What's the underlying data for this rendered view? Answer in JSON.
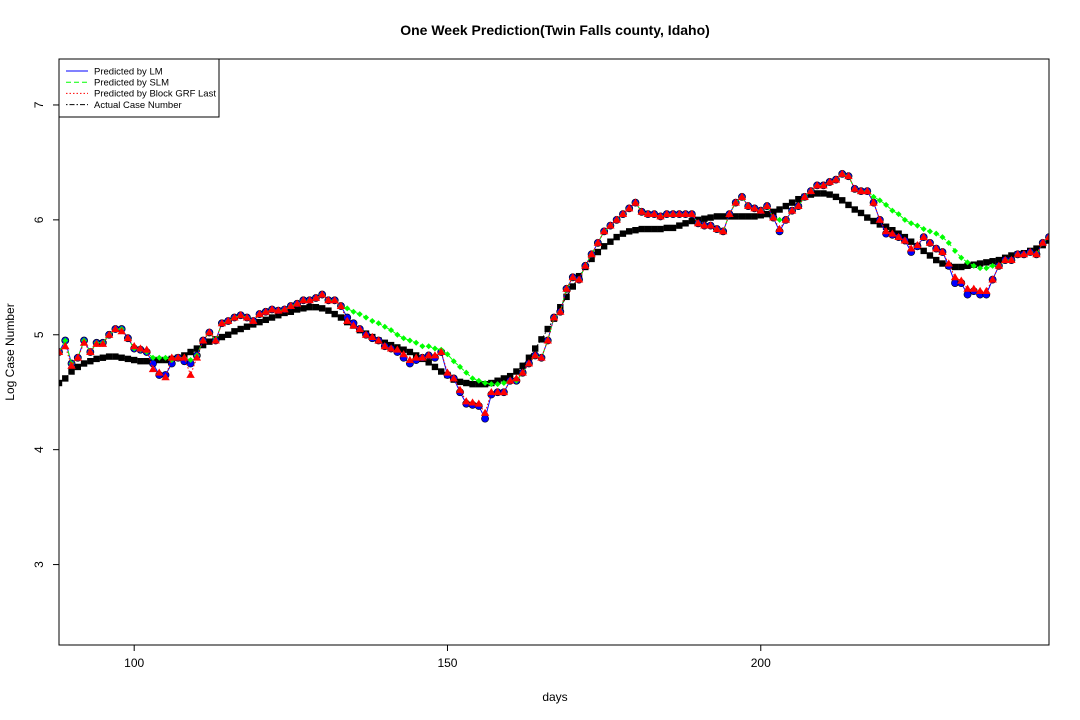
{
  "chart_data": {
    "type": "line",
    "title": "One Week Prediction(Twin Falls county, Idaho)",
    "xlabel": "days",
    "ylabel": "Log Case Number",
    "xlim": [
      88,
      246
    ],
    "ylim": [
      2.3,
      7.4
    ],
    "xticks": [
      100,
      150,
      200
    ],
    "yticks": [
      3,
      4,
      5,
      6,
      7
    ],
    "grid": false,
    "legend": {
      "position": "top-left",
      "entries": [
        {
          "name": "Predicted by LM",
          "color": "#0000ff",
          "dash": "solid"
        },
        {
          "name": "Predicted by SLM",
          "color": "#00ff00",
          "dash": "dashed"
        },
        {
          "name": "Predicted by Block GRF Last",
          "color": "#ff0000",
          "dash": "dotted"
        },
        {
          "name": "Actual Case Number",
          "color": "#000000",
          "dash": "dotdash"
        }
      ]
    },
    "x_start": 88,
    "series": [
      {
        "name": "Predicted by LM",
        "color": "#0000ff",
        "marker": "circle",
        "values": [
          4.85,
          4.95,
          4.75,
          4.8,
          4.95,
          4.85,
          4.93,
          4.93,
          5.0,
          5.05,
          5.05,
          4.97,
          4.88,
          4.87,
          4.85,
          4.75,
          4.65,
          4.65,
          4.75,
          4.8,
          4.77,
          4.75,
          4.82,
          4.95,
          5.02,
          4.95,
          5.1,
          5.12,
          5.15,
          5.17,
          5.15,
          5.12,
          5.18,
          5.2,
          5.22,
          5.21,
          5.22,
          5.25,
          5.27,
          5.3,
          5.3,
          5.32,
          5.35,
          5.3,
          5.3,
          5.25,
          5.15,
          5.1,
          5.05,
          5.0,
          4.97,
          4.95,
          4.9,
          4.88,
          4.85,
          4.8,
          4.75,
          4.78,
          4.8,
          4.82,
          4.8,
          4.85,
          4.65,
          4.62,
          4.5,
          4.4,
          4.39,
          4.38,
          4.27,
          4.48,
          4.5,
          4.5,
          4.6,
          4.6,
          4.67,
          4.75,
          4.82,
          4.8,
          4.95,
          5.15,
          5.2,
          5.4,
          5.5,
          5.48,
          5.6,
          5.7,
          5.8,
          5.9,
          5.95,
          6.0,
          6.05,
          6.1,
          6.15,
          6.07,
          6.05,
          6.05,
          6.03,
          6.05,
          6.05,
          6.05,
          6.05,
          6.05,
          5.97,
          5.95,
          5.95,
          5.92,
          5.9,
          6.05,
          6.15,
          6.2,
          6.12,
          6.1,
          6.08,
          6.12,
          6.02,
          5.9,
          6.0,
          6.08,
          6.12,
          6.2,
          6.25,
          6.3,
          6.3,
          6.33,
          6.35,
          6.4,
          6.38,
          6.27,
          6.25,
          6.25,
          6.15,
          6.0,
          5.88,
          5.87,
          5.85,
          5.82,
          5.72,
          5.77,
          5.85,
          5.8,
          5.75,
          5.72,
          5.6,
          5.45,
          5.45,
          5.35,
          5.38,
          5.35,
          5.35,
          5.48,
          5.6,
          5.65,
          5.65,
          5.7,
          5.7,
          5.72,
          5.7,
          5.8,
          5.85,
          5.88
        ]
      },
      {
        "name": "Predicted by SLM",
        "color": "#00ff00",
        "marker": "diamond",
        "values": [
          4.85,
          4.95,
          4.75,
          4.8,
          4.95,
          4.85,
          4.93,
          4.93,
          5.0,
          5.05,
          5.05,
          4.97,
          4.88,
          4.87,
          4.85,
          4.8,
          4.8,
          4.8,
          4.78,
          4.8,
          4.8,
          4.78,
          4.82,
          4.95,
          5.02,
          4.95,
          5.1,
          5.12,
          5.15,
          5.17,
          5.15,
          5.12,
          5.18,
          5.2,
          5.22,
          5.21,
          5.22,
          5.25,
          5.27,
          5.3,
          5.3,
          5.32,
          5.35,
          5.3,
          5.3,
          5.25,
          5.23,
          5.2,
          5.18,
          5.15,
          5.12,
          5.1,
          5.07,
          5.04,
          5.0,
          4.97,
          4.95,
          4.93,
          4.9,
          4.9,
          4.88,
          4.87,
          4.83,
          4.77,
          4.72,
          4.67,
          4.62,
          4.6,
          4.58,
          4.57,
          4.57,
          4.58,
          4.6,
          4.6,
          4.67,
          4.75,
          4.82,
          4.8,
          4.95,
          5.15,
          5.2,
          5.4,
          5.5,
          5.48,
          5.6,
          5.7,
          5.8,
          5.9,
          5.95,
          6.0,
          6.05,
          6.1,
          6.15,
          6.07,
          6.05,
          6.05,
          6.03,
          6.05,
          6.05,
          6.05,
          6.05,
          6.05,
          5.97,
          5.95,
          5.95,
          5.92,
          5.9,
          6.05,
          6.15,
          6.2,
          6.12,
          6.1,
          6.08,
          6.12,
          6.02,
          6.0,
          6.0,
          6.08,
          6.12,
          6.2,
          6.25,
          6.3,
          6.3,
          6.33,
          6.35,
          6.4,
          6.38,
          6.27,
          6.25,
          6.25,
          6.2,
          6.17,
          6.13,
          6.08,
          6.05,
          6.0,
          5.97,
          5.95,
          5.92,
          5.9,
          5.88,
          5.85,
          5.8,
          5.73,
          5.67,
          5.63,
          5.6,
          5.58,
          5.58,
          5.6,
          5.6,
          5.65,
          5.65,
          5.7,
          5.7,
          5.72,
          5.7,
          5.8,
          5.85,
          5.88
        ]
      },
      {
        "name": "Predicted by Block GRF Last",
        "color": "#ff0000",
        "marker": "triangle",
        "values": [
          4.85,
          4.9,
          4.73,
          4.8,
          4.93,
          4.85,
          4.92,
          4.92,
          5.0,
          5.05,
          5.03,
          4.97,
          4.9,
          4.88,
          4.87,
          4.7,
          4.67,
          4.63,
          4.8,
          4.8,
          4.8,
          4.65,
          4.8,
          4.95,
          5.02,
          4.95,
          5.1,
          5.12,
          5.15,
          5.17,
          5.15,
          5.12,
          5.18,
          5.2,
          5.22,
          5.21,
          5.22,
          5.25,
          5.27,
          5.3,
          5.3,
          5.32,
          5.35,
          5.3,
          5.3,
          5.25,
          5.12,
          5.08,
          5.05,
          5.0,
          4.98,
          4.95,
          4.9,
          4.88,
          4.87,
          4.83,
          4.78,
          4.8,
          4.8,
          4.82,
          4.82,
          4.85,
          4.67,
          4.62,
          4.52,
          4.42,
          4.41,
          4.4,
          4.32,
          4.5,
          4.5,
          4.5,
          4.6,
          4.62,
          4.67,
          4.75,
          4.82,
          4.8,
          4.95,
          5.15,
          5.2,
          5.4,
          5.5,
          5.48,
          5.6,
          5.7,
          5.8,
          5.9,
          5.95,
          6.0,
          6.05,
          6.1,
          6.15,
          6.07,
          6.05,
          6.05,
          6.03,
          6.05,
          6.05,
          6.05,
          6.05,
          6.05,
          5.97,
          5.95,
          5.95,
          5.92,
          5.9,
          6.05,
          6.15,
          6.2,
          6.12,
          6.1,
          6.08,
          6.12,
          6.02,
          5.92,
          6.0,
          6.08,
          6.12,
          6.2,
          6.25,
          6.3,
          6.3,
          6.33,
          6.35,
          6.4,
          6.38,
          6.27,
          6.25,
          6.25,
          6.15,
          6.0,
          5.9,
          5.88,
          5.85,
          5.82,
          5.75,
          5.78,
          5.85,
          5.8,
          5.75,
          5.72,
          5.62,
          5.5,
          5.47,
          5.4,
          5.4,
          5.38,
          5.38,
          5.48,
          5.6,
          5.65,
          5.65,
          5.7,
          5.7,
          5.72,
          5.7,
          5.8,
          5.85,
          5.88
        ]
      },
      {
        "name": "Actual Case Number",
        "color": "#000000",
        "marker": "square",
        "values": [
          4.58,
          4.62,
          4.68,
          4.72,
          4.75,
          4.77,
          4.79,
          4.8,
          4.81,
          4.81,
          4.8,
          4.79,
          4.78,
          4.77,
          4.77,
          4.78,
          4.78,
          4.78,
          4.79,
          4.8,
          4.82,
          4.85,
          4.88,
          4.91,
          4.94,
          4.96,
          4.98,
          5.0,
          5.03,
          5.05,
          5.07,
          5.09,
          5.11,
          5.13,
          5.15,
          5.17,
          5.19,
          5.2,
          5.22,
          5.23,
          5.24,
          5.24,
          5.23,
          5.21,
          5.18,
          5.15,
          5.11,
          5.08,
          5.04,
          5.01,
          4.98,
          4.95,
          4.93,
          4.91,
          4.89,
          4.87,
          4.85,
          4.82,
          4.79,
          4.76,
          4.72,
          4.68,
          4.65,
          4.61,
          4.59,
          4.58,
          4.57,
          4.57,
          4.57,
          4.58,
          4.6,
          4.62,
          4.64,
          4.68,
          4.73,
          4.8,
          4.88,
          4.96,
          5.05,
          5.14,
          5.24,
          5.33,
          5.42,
          5.51,
          5.59,
          5.66,
          5.72,
          5.77,
          5.81,
          5.85,
          5.88,
          5.9,
          5.91,
          5.92,
          5.92,
          5.92,
          5.92,
          5.93,
          5.93,
          5.95,
          5.97,
          5.99,
          6.0,
          6.01,
          6.02,
          6.03,
          6.03,
          6.03,
          6.03,
          6.03,
          6.03,
          6.03,
          6.04,
          6.05,
          6.07,
          6.09,
          6.12,
          6.15,
          6.18,
          6.2,
          6.22,
          6.23,
          6.23,
          6.22,
          6.2,
          6.17,
          6.13,
          6.09,
          6.06,
          6.02,
          5.99,
          5.96,
          5.94,
          5.91,
          5.88,
          5.85,
          5.81,
          5.77,
          5.73,
          5.69,
          5.65,
          5.62,
          5.6,
          5.59,
          5.59,
          5.6,
          5.61,
          5.62,
          5.63,
          5.64,
          5.65,
          5.67,
          5.69,
          5.7,
          5.71,
          5.73,
          5.75,
          5.78,
          5.82,
          5.87,
          5.9
        ]
      }
    ]
  }
}
